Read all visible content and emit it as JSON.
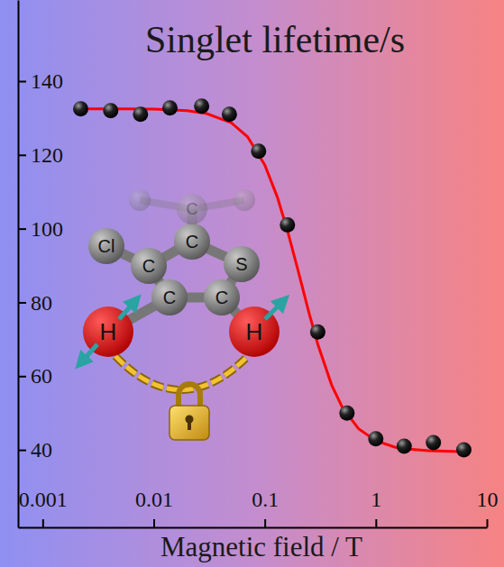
{
  "chart_data": {
    "type": "scatter",
    "title": "Singlet lifetime/s",
    "x_label": "Magnetic field / T",
    "log": "x",
    "grid": false,
    "xlim": [
      0.0006,
      10
    ],
    "xticks": [
      0.001,
      0.01,
      0.1,
      1,
      10
    ],
    "ylim": [
      19,
      162
    ],
    "yticks": [
      40,
      60,
      80,
      100,
      120,
      140
    ],
    "series": [
      {
        "type": "scatter",
        "marker": "circle",
        "color": "#000000",
        "x": [
          0.0022,
          0.0041,
          0.0076,
          0.014,
          0.027,
          0.048,
          0.088,
          0.16,
          0.3,
          0.55,
          1.0,
          1.8,
          3.3,
          6.2
        ],
        "values": [
          132.5,
          132,
          131,
          132.7,
          133.2,
          131,
          121,
          101,
          72,
          50,
          43,
          41,
          42,
          40
        ]
      },
      {
        "type": "line",
        "line_style": "solid",
        "color": "#ff0000",
        "x": [
          0.002,
          0.005,
          0.01,
          0.02,
          0.03,
          0.05,
          0.07,
          0.1,
          0.13,
          0.16,
          0.2,
          0.25,
          0.3,
          0.4,
          0.5,
          0.7,
          1,
          1.5,
          2,
          3,
          5,
          7
        ],
        "values": [
          132.5,
          132.5,
          132.4,
          132,
          131.2,
          128.7,
          124.9,
          117.3,
          108.5,
          99.5,
          88.5,
          77.2,
          68.7,
          57.6,
          51.5,
          45.7,
          42.5,
          40.7,
          40.2,
          39.8,
          39.6,
          39.5
        ]
      }
    ],
    "annotations": [
      "Cl",
      "C",
      "C",
      "S",
      "C",
      "C",
      "H",
      "H",
      "C"
    ]
  }
}
